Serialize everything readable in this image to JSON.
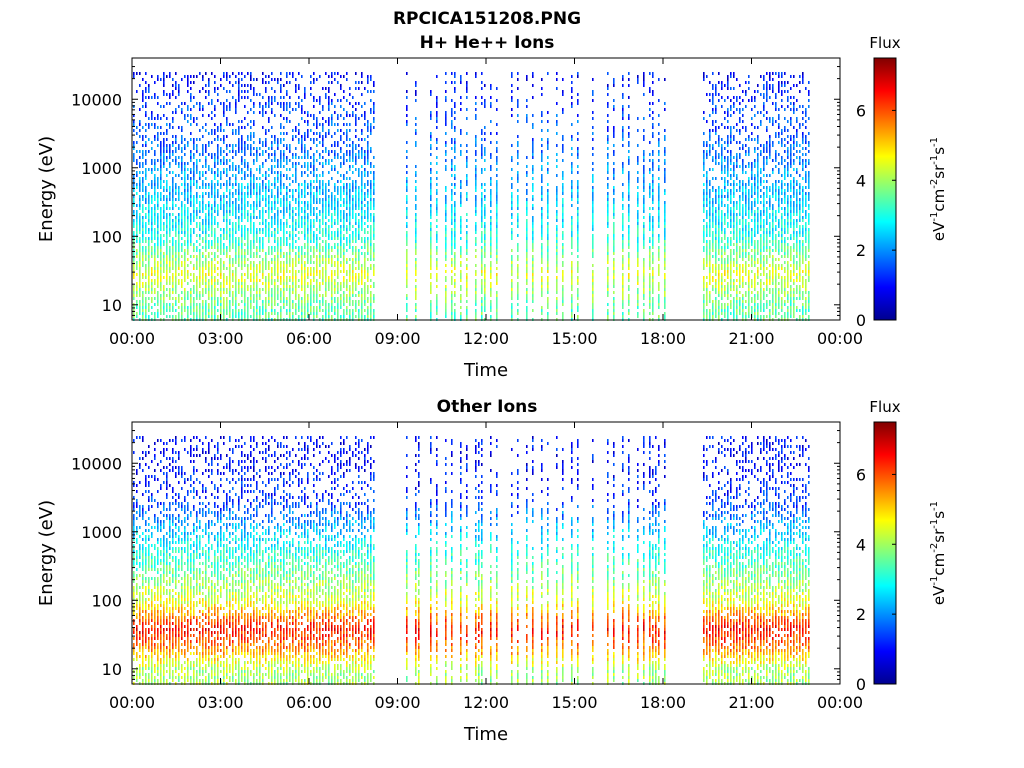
{
  "figure_title": "RPCICA151208.PNG",
  "chart_data": [
    {
      "type": "heatmap",
      "title": "H+ He++ Ions",
      "xlabel": "Time",
      "ylabel": "Energy (eV)",
      "y_scale": "log",
      "ylim_ev": [
        6,
        40000
      ],
      "x_ticks": [
        "00:00",
        "03:00",
        "06:00",
        "09:00",
        "12:00",
        "15:00",
        "18:00",
        "21:00",
        "00:00"
      ],
      "x_tick_hours": [
        0,
        3,
        6,
        9,
        12,
        15,
        18,
        21,
        24
      ],
      "y_ticks": [
        "10",
        "100",
        "1000",
        "10000"
      ],
      "y_tick_values": [
        10,
        100,
        1000,
        10000
      ],
      "data_gaps_hours": [
        [
          8.2,
          9.25
        ],
        [
          18.05,
          19.3
        ],
        [
          23.0,
          24.0
        ]
      ],
      "sweep_band_hours": [
        9.3,
        18.0
      ],
      "colorbar": {
        "title": "Flux",
        "label": "eV-1cm-2sr-1s-1",
        "range": [
          0,
          7.5
        ],
        "ticks": [
          "0",
          "2",
          "4",
          "6"
        ],
        "tick_values": [
          0,
          2,
          4,
          6
        ],
        "colormap": "jet"
      },
      "flux_profile": {
        "energy_ev": [
          10,
          30,
          100,
          300,
          1000,
          3000,
          10000,
          20000
        ],
        "flux": [
          3.5,
          4.5,
          3.0,
          2.5,
          2.0,
          1.6,
          1.3,
          1.0
        ]
      }
    },
    {
      "type": "heatmap",
      "title": "Other Ions",
      "xlabel": "Time",
      "ylabel": "Energy (eV)",
      "y_scale": "log",
      "ylim_ev": [
        6,
        40000
      ],
      "x_ticks": [
        "00:00",
        "03:00",
        "06:00",
        "09:00",
        "12:00",
        "15:00",
        "18:00",
        "21:00",
        "00:00"
      ],
      "x_tick_hours": [
        0,
        3,
        6,
        9,
        12,
        15,
        18,
        21,
        24
      ],
      "y_ticks": [
        "10",
        "100",
        "1000",
        "10000"
      ],
      "y_tick_values": [
        10,
        100,
        1000,
        10000
      ],
      "data_gaps_hours": [
        [
          8.2,
          9.25
        ],
        [
          18.05,
          19.3
        ],
        [
          23.0,
          24.0
        ]
      ],
      "sweep_band_hours": [
        9.3,
        18.0
      ],
      "colorbar": {
        "title": "Flux",
        "label": "eV-1cm-2sr-1s-1",
        "range": [
          0,
          7.5
        ],
        "ticks": [
          "0",
          "2",
          "4",
          "6"
        ],
        "tick_values": [
          0,
          2,
          4,
          6
        ],
        "colormap": "jet"
      },
      "flux_profile": {
        "energy_ev": [
          10,
          20,
          40,
          100,
          300,
          1000,
          3000,
          10000
        ],
        "flux": [
          4.0,
          5.5,
          6.5,
          4.5,
          3.5,
          2.5,
          1.3,
          1.0
        ]
      }
    }
  ]
}
